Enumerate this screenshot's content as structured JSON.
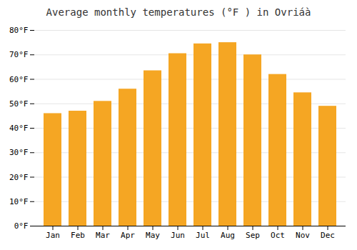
{
  "chart_data": {
    "type": "bar",
    "title": "Average monthly temperatures (°F ) in Ovriáà",
    "categories": [
      "Jan",
      "Feb",
      "Mar",
      "Apr",
      "May",
      "Jun",
      "Jul",
      "Aug",
      "Sep",
      "Oct",
      "Nov",
      "Dec"
    ],
    "values": [
      46,
      47,
      51,
      56,
      63.5,
      70.5,
      74.5,
      75,
      70,
      62,
      54.5,
      49
    ],
    "color": "#F5A623",
    "ylim": [
      0,
      80
    ],
    "yticks": [
      {
        "value": 0,
        "label": "0°F"
      },
      {
        "value": 10,
        "label": "10°F"
      },
      {
        "value": 20,
        "label": "20°F"
      },
      {
        "value": 30,
        "label": "30°F"
      },
      {
        "value": 40,
        "label": "40°F"
      },
      {
        "value": 50,
        "label": "50°F"
      },
      {
        "value": 60,
        "label": "60°F"
      },
      {
        "value": 70,
        "label": "70°F"
      },
      {
        "value": 80,
        "label": "80°F"
      }
    ],
    "grid": true
  }
}
